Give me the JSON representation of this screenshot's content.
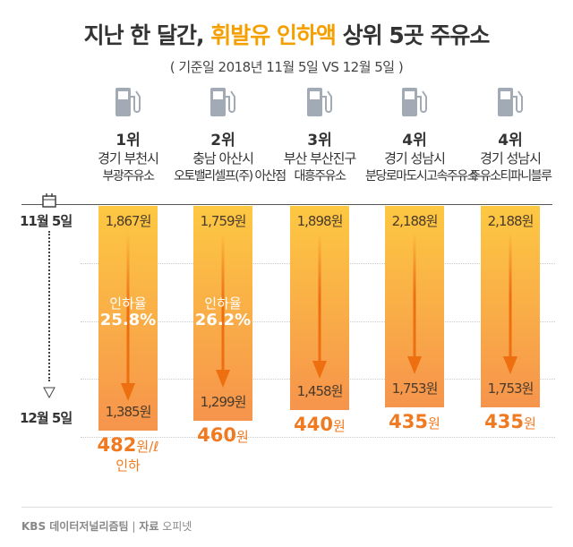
{
  "title": {
    "part1": "지난 한 달간,",
    "highlight": "휘발유 인하액",
    "part2": "상위 5곳 주유소"
  },
  "subtitle": "( 기준일 2018년 11월 5일 VS 12월 5일 )",
  "dates": {
    "start": "11월 5일",
    "end": "12월 5일"
  },
  "colors": {
    "accent": "#f5a000",
    "bar_top": "#fdc842",
    "bar_bottom": "#f6944c",
    "arrow": "#ee6f10",
    "saving": "#f07a20"
  },
  "chart_data": {
    "type": "bar",
    "title": "지난 한 달간, 휘발유 인하액 상위 5곳 주유소",
    "unit": "원/ℓ",
    "stations": [
      {
        "rank": "1위",
        "region": "경기 부천시",
        "name": "부광주유소",
        "nov": "1,867원",
        "dec": "1,385원",
        "nov_value": 1867,
        "dec_value": 1385,
        "saving": "482",
        "saving_unit": "원/ℓ",
        "saving_note": "인하",
        "rate_label": "인하율",
        "rate": "25.8%"
      },
      {
        "rank": "2위",
        "region": "충남 아산시",
        "name": "오토밸리셀프(주) 아산점",
        "nov": "1,759원",
        "dec": "1,299원",
        "nov_value": 1759,
        "dec_value": 1299,
        "saving": "460",
        "saving_unit": "원",
        "rate_label": "인하율",
        "rate": "26.2%"
      },
      {
        "rank": "3위",
        "region": "부산 부산진구",
        "name": "대흥주유소",
        "nov": "1,898원",
        "dec": "1,458원",
        "nov_value": 1898,
        "dec_value": 1458,
        "saving": "440",
        "saving_unit": "원"
      },
      {
        "rank": "4위",
        "region": "경기 성남시",
        "name": "분당로마도시고속주유소",
        "nov": "2,188원",
        "dec": "1,753원",
        "nov_value": 2188,
        "dec_value": 1753,
        "saving": "435",
        "saving_unit": "원"
      },
      {
        "rank": "4위",
        "region": "경기 성남시",
        "name": "주유소티파니블루",
        "nov": "2,188원",
        "dec": "1,753원",
        "nov_value": 2188,
        "dec_value": 1753,
        "saving": "435",
        "saving_unit": "원"
      }
    ]
  },
  "footer": {
    "org": "KBS 데이터저널리즘팀",
    "sep": "|",
    "source_label": "자료",
    "source": "오피넷"
  }
}
